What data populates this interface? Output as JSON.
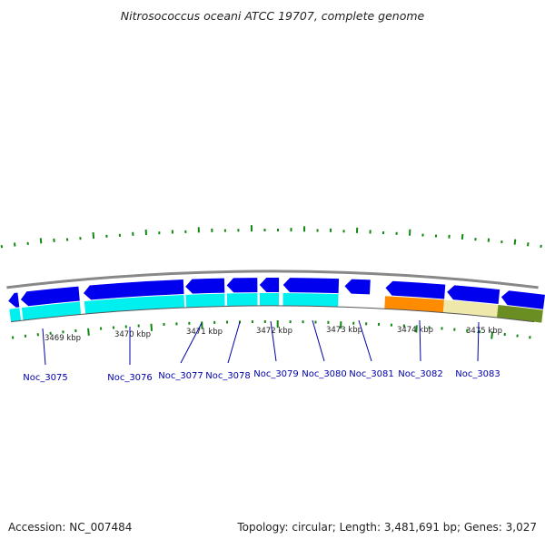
{
  "title": "Nitrosococcus oceani ATCC 19707, complete genome",
  "footer": {
    "accession": "Accession: NC_007484",
    "summary": "Topology: circular; Length: 3,481,691 bp; Genes: 3,027"
  },
  "colors": {
    "forward_gene": "#0000ee",
    "reverse_cds": "#00f0f0",
    "gc_skew": "#118811",
    "backbone": "#888888",
    "label": "#0000aa",
    "seg_orange": "#ff8c00",
    "seg_khaki": "#eee8aa",
    "seg_olive": "#6b8e23"
  },
  "scale_labels": [
    "3469 kbp",
    "3470 kbp",
    "3471 kbp",
    "3472 kbp",
    "3473 kbp",
    "3474 kbp",
    "3475 kbp"
  ],
  "gene_labels": [
    "Noc_3075",
    "Noc_3076",
    "Noc_3077",
    "Noc_3078",
    "Noc_3079",
    "Noc_3080",
    "Noc_3081",
    "Noc_3082",
    "Noc_3083"
  ]
}
